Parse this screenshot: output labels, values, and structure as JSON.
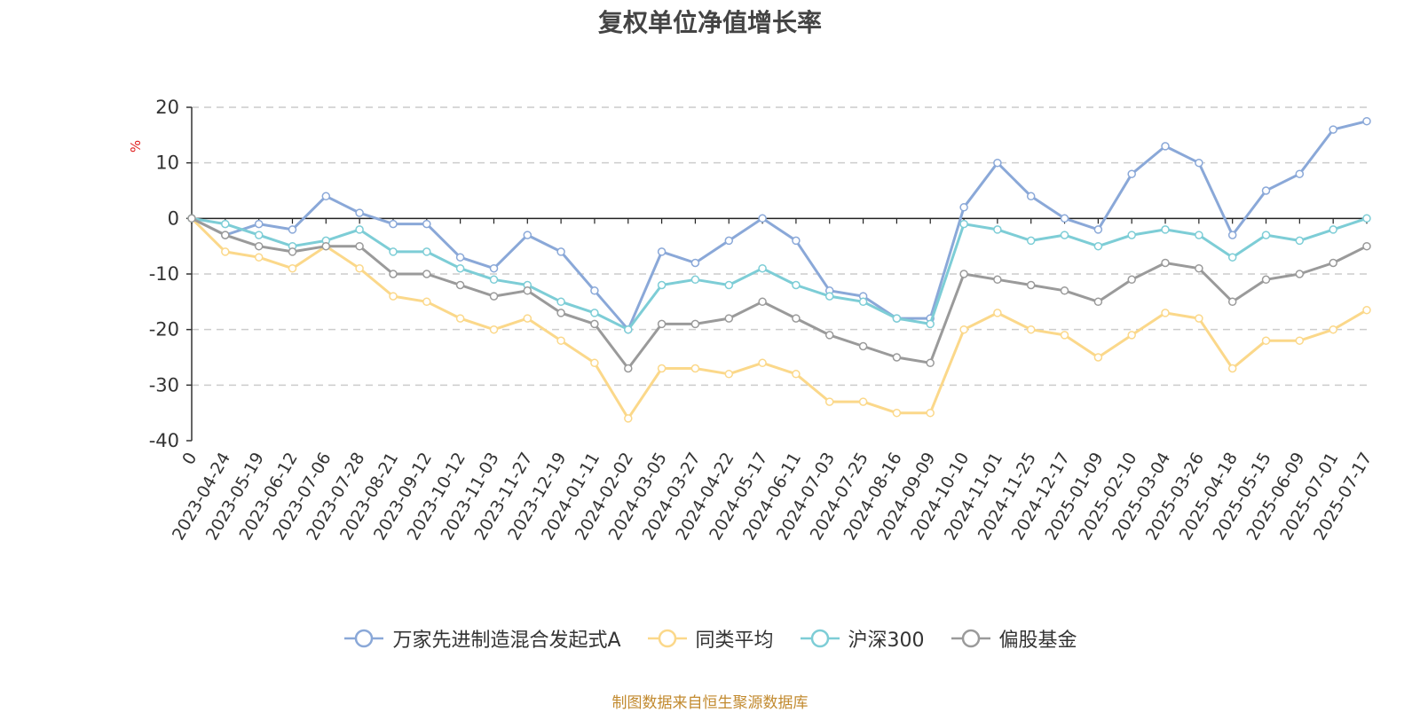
{
  "chart_data": {
    "type": "line",
    "title": "复权单位净值增长率",
    "ylabel": "%",
    "ylim": [
      -40,
      20
    ],
    "yticks": [
      20,
      10,
      0,
      -10,
      -20,
      -30,
      -40
    ],
    "grid": true,
    "legend_position": "bottom",
    "x_labels": [
      "0",
      "2023-04-24",
      "2023-05-19",
      "2023-06-12",
      "2023-07-06",
      "2023-07-28",
      "2023-08-21",
      "2023-09-12",
      "2023-10-12",
      "2023-11-03",
      "2023-11-27",
      "2023-12-19",
      "2024-01-11",
      "2024-02-02",
      "2024-03-05",
      "2024-03-27",
      "2024-04-22",
      "2024-05-17",
      "2024-06-11",
      "2024-07-03",
      "2024-07-25",
      "2024-08-16",
      "2024-09-09",
      "2024-10-10",
      "2024-11-01",
      "2024-11-25",
      "2024-12-17",
      "2025-01-09",
      "2025-02-10",
      "2025-03-04",
      "2025-03-26",
      "2025-04-18",
      "2025-05-15",
      "2025-06-09",
      "2025-07-01",
      "2025-07-17"
    ],
    "series": [
      {
        "name": "万家先进制造混合发起式A",
        "color": "#8aa8d8",
        "values": [
          0,
          -3,
          -1,
          -2,
          4,
          1,
          -1,
          -1,
          -7,
          -9,
          -3,
          -6,
          -13,
          -20,
          -6,
          -8,
          -4,
          0,
          -4,
          -13,
          -14,
          -18,
          -18,
          2,
          10,
          4,
          0,
          -2,
          8,
          13,
          10,
          -3,
          5,
          8,
          16,
          17.5
        ]
      },
      {
        "name": "同类平均",
        "color": "#fbd88a",
        "values": [
          0,
          -6,
          -7,
          -9,
          -5,
          -9,
          -14,
          -15,
          -18,
          -20,
          -18,
          -22,
          -26,
          -36,
          -27,
          -27,
          -28,
          -26,
          -28,
          -33,
          -33,
          -35,
          -35,
          -20,
          -17,
          -20,
          -21,
          -25,
          -21,
          -17,
          -18,
          -27,
          -22,
          -22,
          -20,
          -16.5
        ]
      },
      {
        "name": "沪深300",
        "color": "#7dcdd6",
        "values": [
          0,
          -1,
          -3,
          -5,
          -4,
          -2,
          -6,
          -6,
          -9,
          -11,
          -12,
          -15,
          -17,
          -20,
          -12,
          -11,
          -12,
          -9,
          -12,
          -14,
          -15,
          -18,
          -19,
          -1,
          -2,
          -4,
          -3,
          -5,
          -3,
          -2,
          -3,
          -7,
          -3,
          -4,
          -2,
          0
        ]
      },
      {
        "name": "偏股基金",
        "color": "#9a9a9a",
        "values": [
          0,
          -3,
          -5,
          -6,
          -5,
          -5,
          -10,
          -10,
          -12,
          -14,
          -13,
          -17,
          -19,
          -27,
          -19,
          -19,
          -18,
          -15,
          -18,
          -21,
          -23,
          -25,
          -26,
          -10,
          -11,
          -12,
          -13,
          -15,
          -11,
          -8,
          -9,
          -15,
          -11,
          -10,
          -8,
          -5
        ]
      }
    ]
  },
  "source_note": "制图数据来自恒生聚源数据库"
}
